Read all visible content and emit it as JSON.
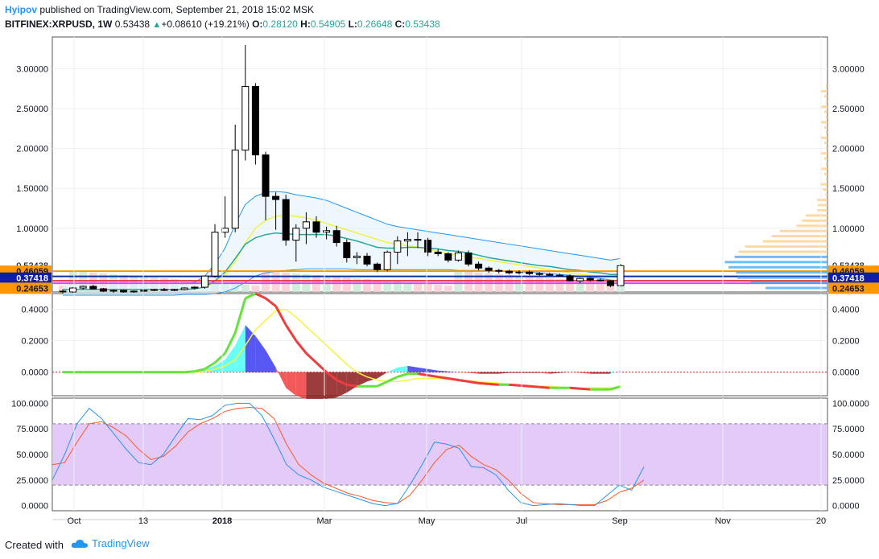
{
  "header": {
    "author": "Hyipov",
    "published_text": "published on TradingView.com, September 21, 2018 15:02 MSK",
    "symbol": "BITFINEX:XRPUSD, 1W",
    "last": "0.53438",
    "change": "+0.08610 (+19.21%)",
    "o_label": "O:",
    "o_value": "0.28120",
    "h_label": "H:",
    "h_value": "0.54905",
    "l_label": "L:",
    "l_value": "0.26648",
    "c_label": "C:",
    "c_value": "0.53438"
  },
  "footer": {
    "created_with": "Created with",
    "brand": "TradingView"
  },
  "colors": {
    "up_candle": "#ffffff",
    "down_candle": "#000000",
    "wick": "#000000",
    "bb_band": "#2196f3",
    "sma_yellow": "#f2f240",
    "ema_teal": "#26a69a",
    "ema_green": "#6cdf4a",
    "orange_line": "#ff9800",
    "price_label_bg": "#131722",
    "rsi_fill": "#e1c4f8",
    "macd_green": "#64e33e",
    "macd_red": "#f03c3c",
    "macd_signal": "#f5f53a",
    "stoch_k": "#2196f3",
    "stoch_d": "#ff5722",
    "zero_line": "#ff0000"
  },
  "chart_data": [
    {
      "type": "candlestick",
      "yticks": [
        "3.00000",
        "2.50000",
        "2.00000",
        "1.50000",
        "1.00000",
        "0.53438"
      ],
      "ylim": [
        0.2,
        3.4
      ],
      "xticks": [
        "Oct",
        "13",
        "2018",
        "Mar",
        "May",
        "Jul",
        "Sep",
        "Nov",
        "20"
      ],
      "price_labels": [
        {
          "value": 0.53438,
          "text": "0.53438",
          "style": "plain"
        },
        {
          "value": 0.46059,
          "text": "0.46059",
          "style": "orange"
        },
        {
          "value": 0.37418,
          "text": "0.37418",
          "style": "blue"
        },
        {
          "value": 0.24653,
          "text": "0.24653",
          "style": "orange"
        }
      ],
      "levels": [
        {
          "name": "orange-level",
          "value": 0.46059,
          "color": "#ff9800"
        },
        {
          "name": "blue-level",
          "value": 0.395,
          "color": "#0d2fa7"
        },
        {
          "name": "red-level",
          "value": 0.34,
          "color": "#e53935"
        },
        {
          "name": "magenta-level",
          "value": 0.31,
          "color": "#e040fb"
        }
      ],
      "candles": [
        [
          0.21,
          0.23,
          0.18,
          0.2
        ],
        [
          0.2,
          0.26,
          0.19,
          0.25
        ],
        [
          0.25,
          0.28,
          0.23,
          0.27
        ],
        [
          0.27,
          0.29,
          0.23,
          0.24
        ],
        [
          0.24,
          0.25,
          0.2,
          0.21
        ],
        [
          0.21,
          0.23,
          0.19,
          0.22
        ],
        [
          0.22,
          0.23,
          0.19,
          0.2
        ],
        [
          0.2,
          0.22,
          0.19,
          0.21
        ],
        [
          0.21,
          0.23,
          0.2,
          0.22
        ],
        [
          0.22,
          0.24,
          0.21,
          0.23
        ],
        [
          0.23,
          0.25,
          0.21,
          0.22
        ],
        [
          0.22,
          0.24,
          0.21,
          0.23
        ],
        [
          0.23,
          0.26,
          0.22,
          0.25
        ],
        [
          0.25,
          0.27,
          0.23,
          0.26
        ],
        [
          0.26,
          0.4,
          0.24,
          0.4
        ],
        [
          0.4,
          1.05,
          0.38,
          0.95
        ],
        [
          0.95,
          1.4,
          0.88,
          1.0
        ],
        [
          1.0,
          2.3,
          0.95,
          1.98
        ],
        [
          1.98,
          3.3,
          1.85,
          2.78
        ],
        [
          2.78,
          2.82,
          1.8,
          1.92
        ],
        [
          1.92,
          1.96,
          1.1,
          1.4
        ],
        [
          1.4,
          1.45,
          0.98,
          1.36
        ],
        [
          1.36,
          1.42,
          0.78,
          0.85
        ],
        [
          0.85,
          1.05,
          0.58,
          1.0
        ],
        [
          1.0,
          1.2,
          0.8,
          1.08
        ],
        [
          1.08,
          1.15,
          0.88,
          0.95
        ],
        [
          0.95,
          1.02,
          0.86,
          0.97
        ],
        [
          0.97,
          1.03,
          0.77,
          0.82
        ],
        [
          0.82,
          0.86,
          0.57,
          0.63
        ],
        [
          0.63,
          0.7,
          0.55,
          0.65
        ],
        [
          0.65,
          0.69,
          0.52,
          0.55
        ],
        [
          0.55,
          0.57,
          0.45,
          0.48
        ],
        [
          0.48,
          0.72,
          0.46,
          0.7
        ],
        [
          0.7,
          0.9,
          0.55,
          0.84
        ],
        [
          0.84,
          0.95,
          0.65,
          0.86
        ],
        [
          0.86,
          0.95,
          0.75,
          0.85
        ],
        [
          0.85,
          0.88,
          0.65,
          0.7
        ],
        [
          0.7,
          0.74,
          0.65,
          0.68
        ],
        [
          0.68,
          0.7,
          0.57,
          0.6
        ],
        [
          0.6,
          0.72,
          0.58,
          0.69
        ],
        [
          0.69,
          0.72,
          0.52,
          0.55
        ],
        [
          0.55,
          0.58,
          0.47,
          0.5
        ],
        [
          0.5,
          0.52,
          0.44,
          0.47
        ],
        [
          0.47,
          0.49,
          0.43,
          0.46
        ],
        [
          0.46,
          0.48,
          0.42,
          0.44
        ],
        [
          0.44,
          0.47,
          0.42,
          0.45
        ],
        [
          0.45,
          0.47,
          0.41,
          0.43
        ],
        [
          0.43,
          0.45,
          0.4,
          0.42
        ],
        [
          0.42,
          0.44,
          0.4,
          0.41
        ],
        [
          0.41,
          0.43,
          0.39,
          0.4
        ],
        [
          0.4,
          0.42,
          0.33,
          0.34
        ],
        [
          0.34,
          0.38,
          0.31,
          0.37
        ],
        [
          0.37,
          0.38,
          0.33,
          0.35
        ],
        [
          0.35,
          0.37,
          0.33,
          0.34
        ],
        [
          0.34,
          0.35,
          0.26,
          0.28
        ],
        [
          0.28,
          0.55,
          0.27,
          0.53
        ]
      ],
      "bb_upper": [
        0.31,
        0.31,
        0.31,
        0.31,
        0.31,
        0.31,
        0.31,
        0.31,
        0.31,
        0.31,
        0.31,
        0.31,
        0.31,
        0.32,
        0.4,
        0.55,
        0.75,
        1.05,
        1.3,
        1.4,
        1.45,
        1.46,
        1.45,
        1.42,
        1.4,
        1.38,
        1.35,
        1.3,
        1.25,
        1.2,
        1.15,
        1.1,
        1.05,
        1.02,
        1.0,
        0.98,
        0.96,
        0.94,
        0.92,
        0.9,
        0.88,
        0.86,
        0.84,
        0.82,
        0.8,
        0.78,
        0.76,
        0.74,
        0.72,
        0.7,
        0.68,
        0.66,
        0.64,
        0.62,
        0.6,
        0.62
      ],
      "bb_lower": [
        0.16,
        0.16,
        0.16,
        0.16,
        0.16,
        0.16,
        0.16,
        0.16,
        0.16,
        0.16,
        0.16,
        0.16,
        0.17,
        0.17,
        0.17,
        0.18,
        0.2,
        0.25,
        0.32,
        0.4,
        0.44,
        0.46,
        0.47,
        0.48,
        0.49,
        0.49,
        0.49,
        0.49,
        0.49,
        0.48,
        0.48,
        0.48,
        0.48,
        0.48,
        0.48,
        0.48,
        0.48,
        0.48,
        0.48,
        0.47,
        0.47,
        0.47,
        0.47,
        0.46,
        0.46,
        0.45,
        0.45,
        0.44,
        0.43,
        0.42,
        0.41,
        0.4,
        0.38,
        0.37,
        0.35,
        0.34
      ],
      "sma_yellow": [
        0.23,
        0.23,
        0.23,
        0.23,
        0.23,
        0.23,
        0.23,
        0.23,
        0.23,
        0.23,
        0.23,
        0.23,
        0.23,
        0.24,
        0.26,
        0.32,
        0.42,
        0.58,
        0.82,
        1.0,
        1.1,
        1.15,
        1.16,
        1.15,
        1.13,
        1.1,
        1.06,
        1.02,
        0.98,
        0.94,
        0.9,
        0.86,
        0.82,
        0.8,
        0.78,
        0.76,
        0.74,
        0.71,
        0.68,
        0.66,
        0.64,
        0.62,
        0.6,
        0.58,
        0.56,
        0.54,
        0.52,
        0.5,
        0.48,
        0.46,
        0.44,
        0.42,
        0.41,
        0.4,
        0.39,
        0.39
      ],
      "ema_teal": [
        0.23,
        0.23,
        0.23,
        0.23,
        0.23,
        0.23,
        0.23,
        0.23,
        0.23,
        0.23,
        0.23,
        0.23,
        0.23,
        0.24,
        0.26,
        0.34,
        0.45,
        0.62,
        0.8,
        0.88,
        0.92,
        0.94,
        0.93,
        0.92,
        0.92,
        0.92,
        0.92,
        0.9,
        0.87,
        0.84,
        0.8,
        0.76,
        0.75,
        0.75,
        0.76,
        0.76,
        0.75,
        0.74,
        0.72,
        0.71,
        0.69,
        0.66,
        0.63,
        0.61,
        0.59,
        0.57,
        0.55,
        0.53,
        0.52,
        0.5,
        0.48,
        0.47,
        0.45,
        0.44,
        0.42,
        0.42
      ]
    },
    {
      "type": "line",
      "yticks": [
        "0.4000",
        "0.2000",
        "0.0000"
      ],
      "ylim": [
        -0.15,
        0.5
      ],
      "macd": [
        0,
        0,
        0,
        0,
        0,
        0,
        0,
        0,
        0,
        0,
        0,
        0,
        0,
        0.005,
        0.02,
        0.06,
        0.12,
        0.25,
        0.47,
        0.5,
        0.47,
        0.42,
        0.3,
        0.2,
        0.12,
        0.06,
        0.0,
        -0.05,
        -0.08,
        -0.09,
        -0.09,
        -0.09,
        -0.06,
        -0.03,
        -0.01,
        -0.01,
        -0.02,
        -0.03,
        -0.04,
        -0.05,
        -0.06,
        -0.07,
        -0.075,
        -0.08,
        -0.08,
        -0.085,
        -0.09,
        -0.095,
        -0.1,
        -0.1,
        -0.1,
        -0.105,
        -0.11,
        -0.11,
        -0.11,
        -0.09
      ],
      "signal": [
        0,
        0,
        0,
        0,
        0,
        0,
        0,
        0,
        0,
        0,
        0,
        0,
        0,
        0,
        0.005,
        0.02,
        0.04,
        0.08,
        0.17,
        0.27,
        0.33,
        0.39,
        0.4,
        0.35,
        0.29,
        0.23,
        0.17,
        0.11,
        0.05,
        0.0,
        -0.03,
        -0.05,
        -0.06,
        -0.06,
        -0.05,
        -0.04,
        -0.04,
        -0.04,
        -0.045,
        -0.05,
        -0.055,
        -0.06,
        -0.065,
        -0.07,
        -0.075,
        -0.08,
        -0.085,
        -0.09,
        -0.09,
        -0.095,
        -0.1,
        -0.1,
        -0.1,
        -0.1,
        -0.1,
        -0.1
      ],
      "histogram": [
        0,
        0,
        0,
        0,
        0,
        0,
        0,
        0,
        0,
        0,
        0,
        0,
        0,
        0.005,
        0.015,
        0.04,
        0.08,
        0.17,
        0.3,
        0.23,
        0.14,
        0.03,
        -0.1,
        -0.15,
        -0.17,
        -0.17,
        -0.17,
        -0.16,
        -0.13,
        -0.09,
        -0.06,
        -0.04,
        0.0,
        0.03,
        0.04,
        0.03,
        0.02,
        0.01,
        0.005,
        0.0,
        -0.005,
        -0.01,
        -0.01,
        -0.01,
        -0.005,
        -0.005,
        -0.005,
        -0.005,
        -0.01,
        -0.005,
        0.0,
        -0.005,
        -0.01,
        -0.01,
        -0.01,
        0.01
      ]
    },
    {
      "type": "line",
      "yticks": [
        "100.0000",
        "75.0000",
        "50.0000",
        "25.0000",
        "0.0000"
      ],
      "ylim": [
        -5,
        105
      ],
      "band": [
        20,
        80
      ],
      "stoch_k": [
        25,
        50,
        80,
        95,
        85,
        70,
        55,
        42,
        40,
        50,
        68,
        85,
        84,
        88,
        98,
        100,
        100,
        88,
        65,
        40,
        30,
        25,
        18,
        14,
        10,
        6,
        2,
        0,
        2,
        20,
        40,
        62,
        60,
        56,
        38,
        37,
        30,
        15,
        3,
        0,
        1,
        2,
        1,
        0,
        0,
        10,
        20,
        15,
        38
      ],
      "stoch_d": [
        40,
        42,
        62,
        80,
        82,
        76,
        68,
        55,
        45,
        48,
        58,
        72,
        80,
        85,
        92,
        95,
        96,
        95,
        85,
        60,
        40,
        30,
        22,
        17,
        12,
        9,
        5,
        3,
        2,
        10,
        25,
        42,
        55,
        59,
        48,
        40,
        35,
        25,
        12,
        3,
        2,
        1,
        1,
        1,
        1,
        5,
        13,
        17,
        25
      ]
    }
  ]
}
